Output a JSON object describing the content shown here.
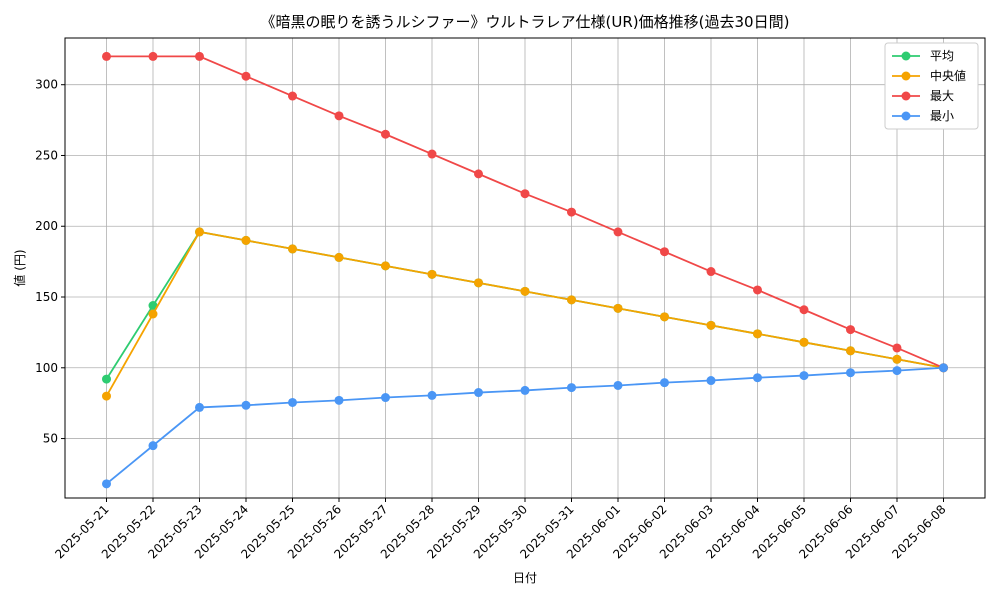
{
  "chart_data": {
    "type": "line",
    "title": "《暗黒の眠りを誘うルシファー》ウルトラレア仕様(UR)価格推移(過去30日間)",
    "xlabel": "日付",
    "ylabel": "値 (円)",
    "x": [
      "2025-05-21",
      "2025-05-22",
      "2025-05-23",
      "2025-05-24",
      "2025-05-25",
      "2025-05-26",
      "2025-05-27",
      "2025-05-28",
      "2025-05-29",
      "2025-05-30",
      "2025-05-31",
      "2025-06-01",
      "2025-06-02",
      "2025-06-03",
      "2025-06-04",
      "2025-06-05",
      "2025-06-06",
      "2025-06-07",
      "2025-06-08"
    ],
    "ylim": [
      8,
      333
    ],
    "yticks": [
      50,
      100,
      150,
      200,
      250,
      300
    ],
    "grid": true,
    "legend_position": "top-right",
    "series": [
      {
        "name": "平均",
        "color": "#2ecc71",
        "values": [
          92,
          144,
          196,
          190,
          184,
          178,
          172,
          166,
          160,
          154,
          148,
          142,
          136,
          130,
          124,
          118,
          112,
          106,
          100
        ]
      },
      {
        "name": "中央値",
        "color": "#f5a300",
        "values": [
          80,
          138,
          196,
          190,
          184,
          178,
          172,
          166,
          160,
          154,
          148,
          142,
          136,
          130,
          124,
          118,
          112,
          106,
          100
        ]
      },
      {
        "name": "最大",
        "color": "#f04848",
        "values": [
          320,
          320,
          320,
          306,
          292,
          278,
          265,
          251,
          237,
          223,
          210,
          196,
          182,
          168,
          155,
          141,
          127,
          114,
          100
        ]
      },
      {
        "name": "最小",
        "color": "#4a96f5",
        "values": [
          18,
          45,
          72,
          73.5,
          75.5,
          77,
          79,
          80.5,
          82.5,
          84,
          86,
          87.5,
          89.5,
          91,
          93,
          94.5,
          96.5,
          98,
          100
        ]
      }
    ]
  }
}
